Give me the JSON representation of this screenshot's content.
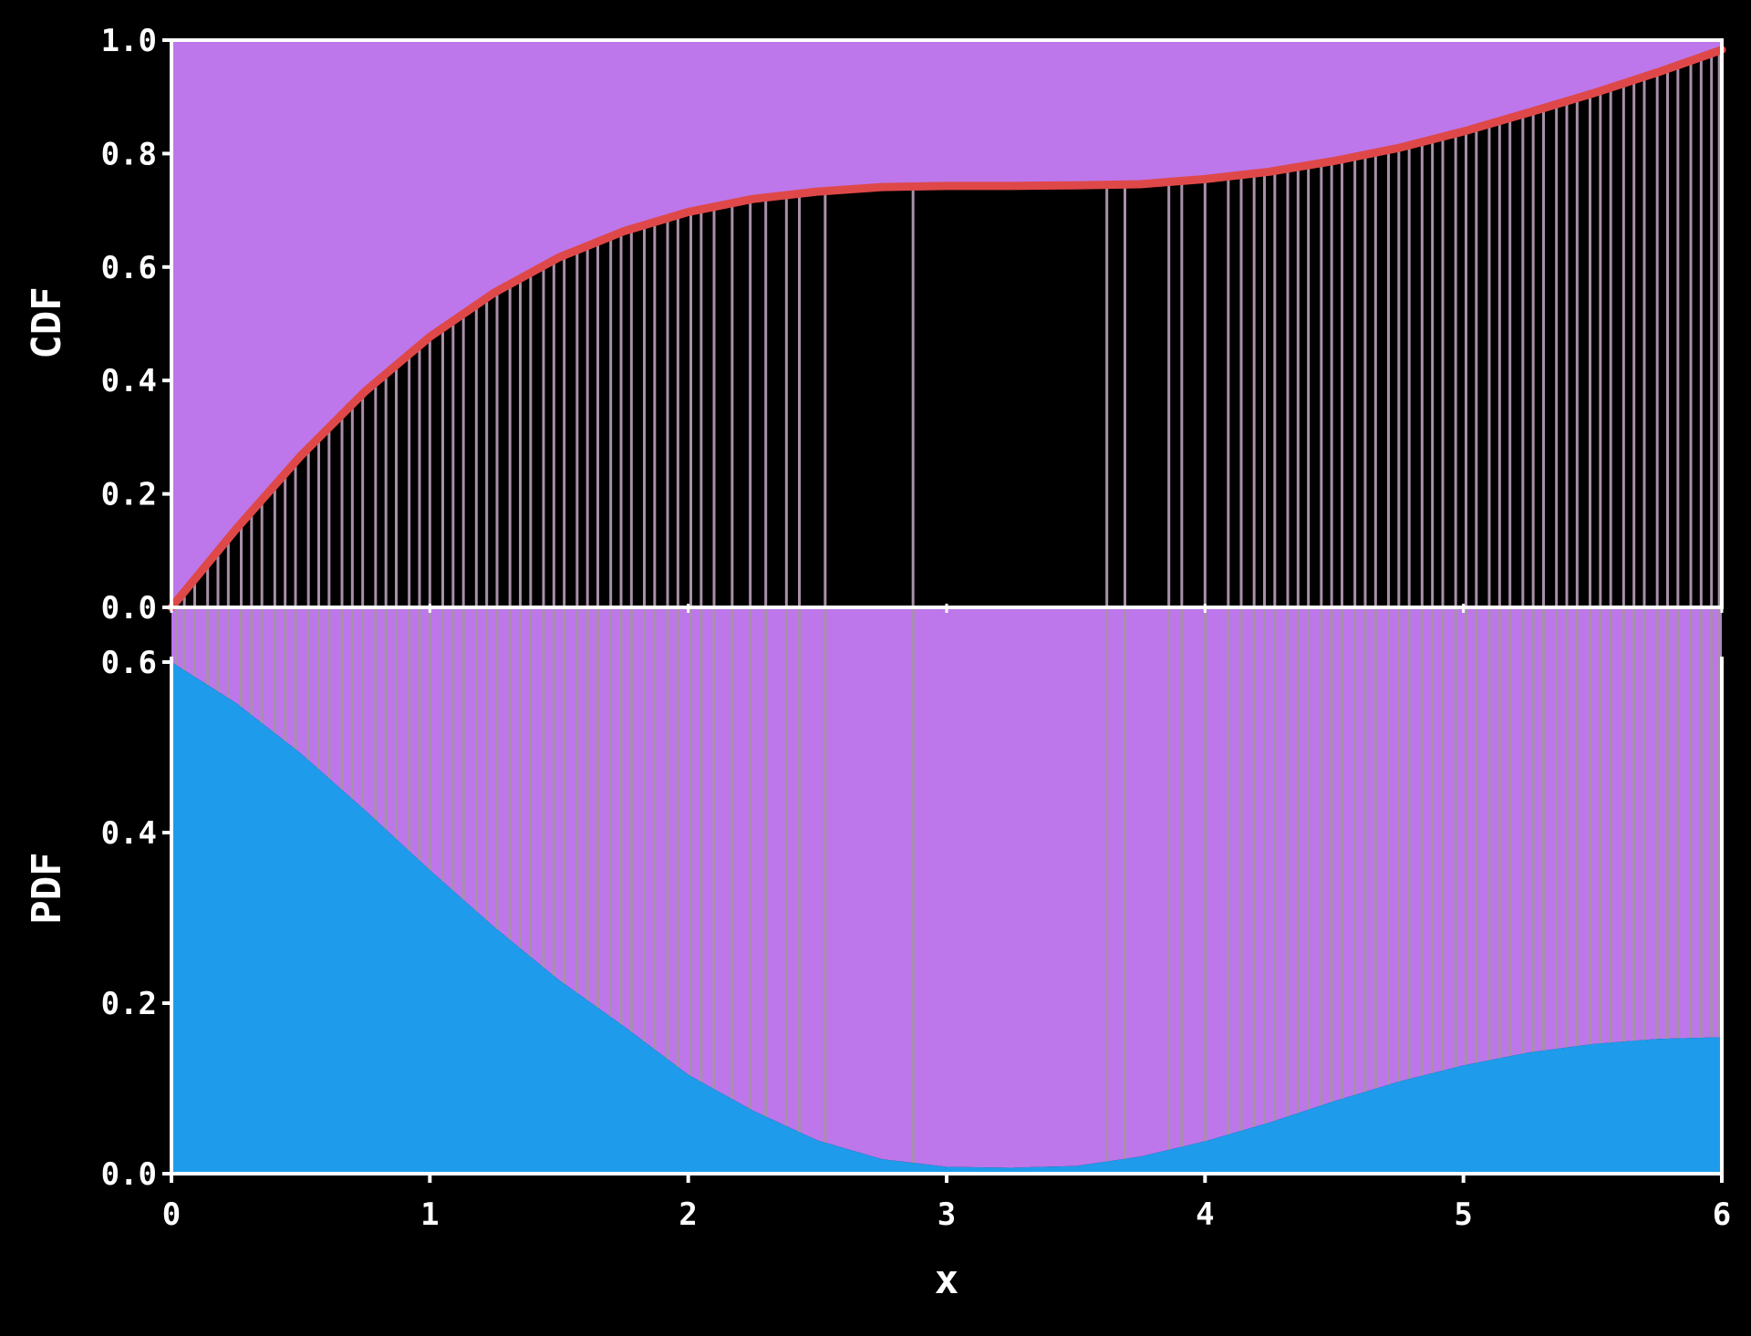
{
  "chart_data": {
    "type": "area",
    "colors": {
      "background": "#000000",
      "sample_band": "#bd77ea",
      "sample_line": "#a890a8",
      "cdf_line": "#df4848",
      "pdf_fill": "#1e9beb",
      "axis": "#ffffff"
    },
    "x": {
      "label": "x",
      "range": [
        0,
        6
      ],
      "ticks": [
        0,
        1,
        2,
        3,
        4,
        5,
        6
      ],
      "tick_labels": [
        "0",
        "1",
        "2",
        "3",
        "4",
        "5",
        "6"
      ]
    },
    "panels": [
      {
        "name": "cdf",
        "ylabel": "CDF",
        "ylim": [
          0,
          1
        ],
        "ticks": [
          0,
          0.2,
          0.4,
          0.6,
          0.8,
          1.0
        ],
        "tick_labels": [
          "0.0",
          "0.2",
          "0.4",
          "0.6",
          "0.8",
          "1.0"
        ],
        "series": [
          {
            "type": "line",
            "x": [
              0,
              0.25,
              0.5,
              0.75,
              1.0,
              1.25,
              1.5,
              1.75,
              2.0,
              2.25,
              2.5,
              2.75,
              3.0,
              3.25,
              3.5,
              3.75,
              4.0,
              4.25,
              4.5,
              4.75,
              5.0,
              5.25,
              5.5,
              5.75,
              6.0
            ],
            "values": [
              0.0,
              0.138,
              0.267,
              0.381,
              0.477,
              0.555,
              0.617,
              0.663,
              0.697,
              0.72,
              0.733,
              0.741,
              0.743,
              0.743,
              0.744,
              0.746,
              0.755,
              0.768,
              0.787,
              0.81,
              0.839,
              0.872,
              0.906,
              0.943,
              0.983
            ]
          }
        ]
      },
      {
        "name": "pdf",
        "ylabel": "PDF",
        "ylim": [
          0,
          0.6
        ],
        "ticks": [
          0,
          0.2,
          0.4,
          0.6
        ],
        "tick_labels": [
          "0.0",
          "0.2",
          "0.4",
          "0.6"
        ],
        "series": [
          {
            "type": "area",
            "x": [
              0,
              0.25,
              0.5,
              0.75,
              1.0,
              1.25,
              1.5,
              1.75,
              2.0,
              2.25,
              2.5,
              2.75,
              3.0,
              3.25,
              3.5,
              3.75,
              4.0,
              4.25,
              4.5,
              4.75,
              5.0,
              5.25,
              5.5,
              5.75,
              6.0
            ],
            "values": [
              0.6,
              0.552,
              0.493,
              0.426,
              0.356,
              0.289,
              0.227,
              0.173,
              0.116,
              0.074,
              0.039,
              0.017,
              0.008,
              0.007,
              0.009,
              0.02,
              0.038,
              0.06,
              0.085,
              0.108,
              0.127,
              0.142,
              0.152,
              0.158,
              0.16
            ]
          }
        ]
      }
    ],
    "samples_x": [
      0.02,
      0.05,
      0.09,
      0.14,
      0.18,
      0.22,
      0.27,
      0.31,
      0.35,
      0.4,
      0.44,
      0.48,
      0.53,
      0.57,
      0.61,
      0.66,
      0.7,
      0.74,
      0.79,
      0.83,
      0.87,
      0.92,
      0.96,
      1.0,
      1.05,
      1.09,
      1.13,
      1.18,
      1.22,
      1.26,
      1.31,
      1.35,
      1.39,
      1.44,
      1.48,
      1.52,
      1.57,
      1.61,
      1.65,
      1.7,
      1.74,
      1.78,
      1.83,
      1.87,
      1.92,
      1.96,
      2.01,
      2.05,
      2.1,
      2.17,
      2.24,
      2.3,
      2.38,
      2.43,
      2.53,
      2.87,
      3.62,
      3.69,
      3.86,
      3.91,
      4.0,
      4.09,
      4.14,
      4.19,
      4.23,
      4.27,
      4.32,
      4.36,
      4.4,
      4.45,
      4.49,
      4.53,
      4.58,
      4.62,
      4.66,
      4.71,
      4.75,
      4.79,
      4.84,
      4.88,
      4.92,
      4.97,
      5.01,
      5.05,
      5.1,
      5.14,
      5.18,
      5.23,
      5.27,
      5.31,
      5.36,
      5.4,
      5.44,
      5.49,
      5.53,
      5.57,
      5.62,
      5.66,
      5.7,
      5.75,
      5.79,
      5.83,
      5.88,
      5.92,
      5.96,
      5.99
    ]
  }
}
